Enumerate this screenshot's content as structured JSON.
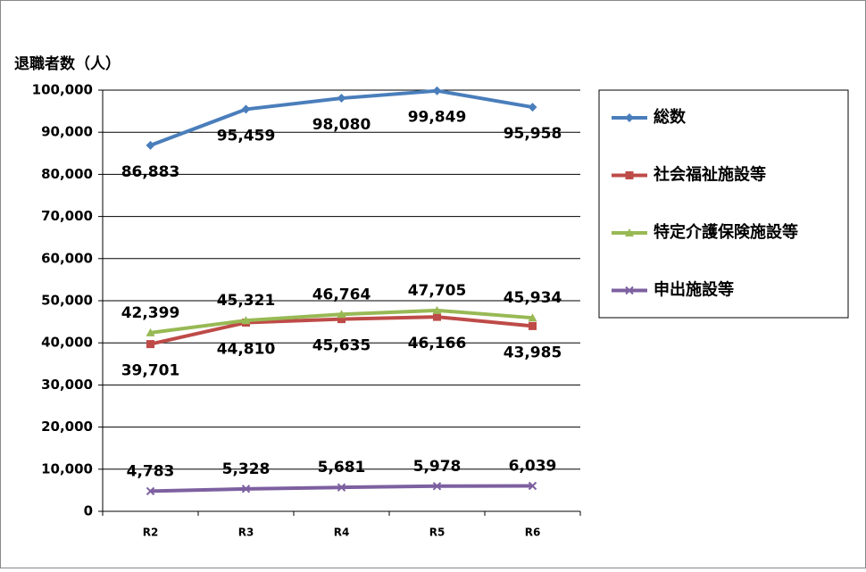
{
  "chart_data": {
    "type": "line",
    "y_axis_label": "退職者数（人）",
    "categories": [
      "R2",
      "R3",
      "R4",
      "R5",
      "R6"
    ],
    "ylim": [
      0,
      100000
    ],
    "yticks": [
      0,
      {
        "value": 10000,
        "label": "10,000"
      },
      {
        "value": 20000,
        "label": "20,000"
      },
      {
        "value": 30000,
        "label": "30,000"
      },
      {
        "value": 40000,
        "label": "40,000"
      },
      {
        "value": 50000,
        "label": "50,000"
      },
      {
        "value": 60000,
        "label": "60,000"
      },
      {
        "value": 70000,
        "label": "70,000"
      },
      {
        "value": 80000,
        "label": "80,000"
      },
      {
        "value": 90000,
        "label": "90,000"
      },
      {
        "value": 100000,
        "label": "100,000"
      }
    ],
    "grid": true,
    "legend": "right",
    "series": [
      {
        "name": "総数",
        "color": "#4a7ebb",
        "marker": "diamond",
        "label_position": "below",
        "values": [
          86883,
          95459,
          98080,
          99849,
          95958
        ],
        "value_labels": [
          "86,883",
          "95,459",
          "98,080",
          "99,849",
          "95,958"
        ]
      },
      {
        "name": "社会福祉施設等",
        "color": "#be4b48",
        "marker": "square",
        "label_position": "below",
        "values": [
          39701,
          44810,
          45635,
          46166,
          43985
        ],
        "value_labels": [
          "39,701",
          "44,810",
          "45,635",
          "46,166",
          "43,985"
        ]
      },
      {
        "name": "特定介護保険施設等",
        "color": "#98b954",
        "marker": "triangle",
        "label_position": "above",
        "values": [
          42399,
          45321,
          46764,
          47705,
          45934
        ],
        "value_labels": [
          "42,399",
          "45,321",
          "46,764",
          "47,705",
          "45,934"
        ]
      },
      {
        "name": "申出施設等",
        "color": "#7d60a0",
        "marker": "x",
        "label_position": "above",
        "values": [
          4783,
          5328,
          5681,
          5978,
          6039
        ],
        "value_labels": [
          "4,783",
          "5,328",
          "5,681",
          "5,978",
          "6,039"
        ]
      }
    ]
  }
}
